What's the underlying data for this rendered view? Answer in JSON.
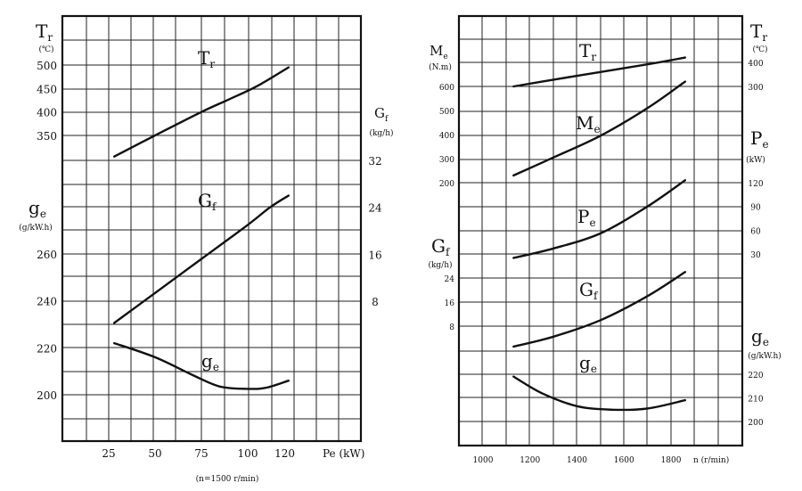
{
  "chart_data": [
    {
      "type": "line",
      "xlabel": "Pe (kW)",
      "caption": "(n=1500 r/min)",
      "xlim": [
        0,
        140
      ],
      "x_ticks": [
        25,
        50,
        75,
        100,
        120
      ],
      "axes": [
        {
          "label": "T_r",
          "label_main": "T",
          "label_sub": "r",
          "unit": "(℃)",
          "ticks": [
            350,
            400,
            450,
            500
          ],
          "side": "left"
        },
        {
          "label": "G_f",
          "label_main": "G",
          "label_sub": "f",
          "unit": "(kg/h)",
          "ticks": [
            8,
            16,
            24,
            32
          ],
          "side": "right"
        },
        {
          "label": "g_e",
          "label_main": "g",
          "label_sub": "e",
          "unit": "(g/kW.h)",
          "ticks": [
            200,
            220,
            240,
            260
          ],
          "side": "left"
        }
      ],
      "series": [
        {
          "name": "Tr",
          "name_main": "T",
          "name_sub": "r",
          "axis": 0,
          "x": [
            28,
            50,
            75,
            90,
            105,
            122
          ],
          "y": [
            305,
            350,
            400,
            427,
            455,
            495
          ]
        },
        {
          "name": "Gf",
          "name_main": "G",
          "name_sub": "f",
          "axis": 1,
          "x": [
            28,
            50,
            75,
            100,
            112,
            122
          ],
          "y": [
            4.3,
            9.4,
            15.2,
            21.0,
            24.0,
            26.0
          ]
        },
        {
          "name": "ge",
          "name_main": "g",
          "name_sub": "e",
          "axis": 2,
          "x": [
            28,
            50,
            70,
            85,
            100,
            110,
            122
          ],
          "y": [
            222,
            216,
            208.5,
            203.5,
            202.5,
            203,
            206
          ]
        }
      ]
    },
    {
      "type": "line",
      "xlabel": "n (r/min)",
      "xlim": [
        900,
        1900
      ],
      "x_ticks": [
        1000,
        1200,
        1400,
        1600,
        1800
      ],
      "axes": [
        {
          "label": "M_e",
          "label_main": "M",
          "label_sub": "e",
          "unit": "(N.m)",
          "ticks": [
            200,
            300,
            400,
            500,
            600
          ],
          "side": "left"
        },
        {
          "label": "T_r",
          "label_main": "T",
          "label_sub": "r",
          "unit": "(℃)",
          "ticks": [
            300,
            400
          ],
          "side": "right"
        },
        {
          "label": "P_e",
          "label_main": "P",
          "label_sub": "e",
          "unit": "(kW)",
          "ticks": [
            30,
            60,
            90,
            120
          ],
          "side": "right"
        },
        {
          "label": "G_f",
          "label_main": "G",
          "label_sub": "f",
          "unit": "(kg/h)",
          "ticks": [
            8,
            16,
            24
          ],
          "side": "left"
        },
        {
          "label": "g_e",
          "label_main": "g",
          "label_sub": "e",
          "unit": "(g/kW.h)",
          "ticks": [
            200,
            210,
            220
          ],
          "side": "right"
        }
      ],
      "series": [
        {
          "name": "Tr",
          "name_main": "T",
          "name_sub": "r",
          "axis": 1,
          "x": [
            1130,
            1300,
            1500,
            1700,
            1860
          ],
          "y": [
            300,
            328,
            360,
            392,
            420
          ]
        },
        {
          "name": "Me",
          "name_main": "M",
          "name_sub": "e",
          "axis": 0,
          "x": [
            1130,
            1300,
            1500,
            1700,
            1860
          ],
          "y": [
            230,
            305,
            395,
            510,
            620
          ]
        },
        {
          "name": "Pe",
          "name_main": "P",
          "name_sub": "e",
          "axis": 2,
          "x": [
            1130,
            1300,
            1500,
            1700,
            1860
          ],
          "y": [
            25,
            37,
            56,
            90,
            123
          ]
        },
        {
          "name": "Gf",
          "name_main": "G",
          "name_sub": "f",
          "axis": 3,
          "x": [
            1130,
            1300,
            1500,
            1700,
            1860
          ],
          "y": [
            1.2,
            4.5,
            10,
            18,
            26
          ]
        },
        {
          "name": "ge",
          "name_main": "g",
          "name_sub": "e",
          "axis": 4,
          "x": [
            1130,
            1250,
            1400,
            1550,
            1700,
            1860
          ],
          "y": [
            219,
            212,
            206.5,
            205,
            205.5,
            209
          ]
        }
      ]
    }
  ]
}
